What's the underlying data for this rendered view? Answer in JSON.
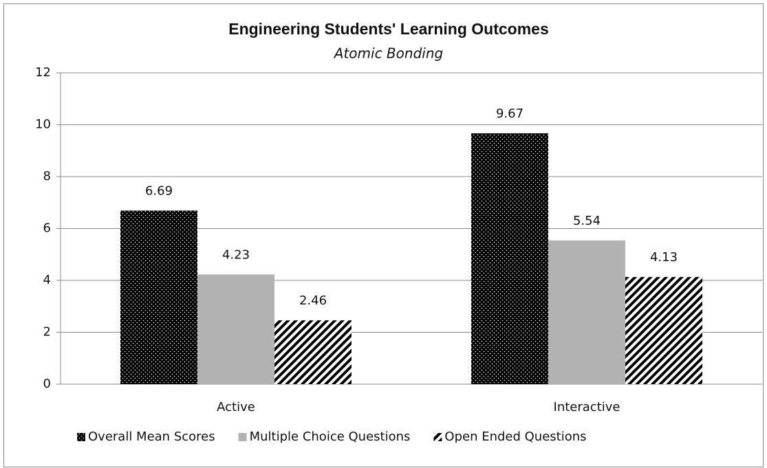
{
  "chart_data": {
    "type": "bar",
    "title": "Engineering Students' Learning Outcomes",
    "subtitle": "Atomic Bonding",
    "categories": [
      "Active",
      "Interactive"
    ],
    "series": [
      {
        "name": "Overall Mean Scores",
        "color": "#000000",
        "pattern": "dots",
        "values": [
          6.69,
          9.67
        ]
      },
      {
        "name": "Multiple Choice Questions",
        "color": "#b2b2b2",
        "pattern": "solid",
        "values": [
          4.23,
          5.54
        ]
      },
      {
        "name": "Open Ended Questions",
        "color": "#000000",
        "pattern": "hatch",
        "values": [
          2.46,
          4.13
        ]
      }
    ],
    "ylim": [
      0,
      12
    ],
    "yticks": [
      0,
      2,
      4,
      6,
      8,
      10,
      12
    ],
    "grid": true,
    "legend": "bottom"
  }
}
